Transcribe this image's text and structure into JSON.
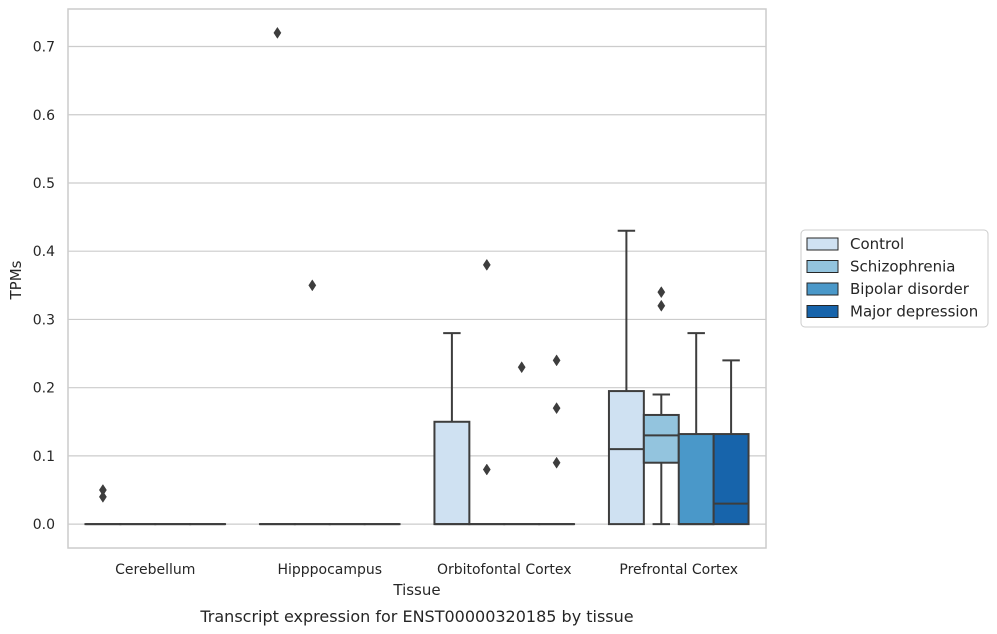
{
  "caption": "Transcript expression for ENST00000320185 by tissue",
  "chart_data": {
    "type": "box",
    "xlabel": "Tissue",
    "ylabel": "TPMs",
    "ylim": [
      -0.035,
      0.755
    ],
    "yticks": [
      "0.0",
      "0.1",
      "0.2",
      "0.3",
      "0.4",
      "0.5",
      "0.6",
      "0.7"
    ],
    "ytick_values": [
      0,
      0.1,
      0.2,
      0.3,
      0.4,
      0.5,
      0.6,
      0.7
    ],
    "grid": true,
    "legend_position": "right",
    "categories": [
      "Cerebellum",
      "Hipppocampus",
      "Orbitofontal Cortex",
      "Prefrontal Cortex"
    ],
    "series": [
      {
        "name": "Control",
        "color": "#cfe1f2",
        "boxes": [
          {
            "category": "Cerebellum",
            "whisker_low": 0,
            "q1": 0,
            "median": 0,
            "q3": 0,
            "whisker_high": 0,
            "outliers": [
              0.05,
              0.04
            ]
          },
          {
            "category": "Hipppocampus",
            "whisker_low": 0,
            "q1": 0,
            "median": 0,
            "q3": 0,
            "whisker_high": 0,
            "outliers": [
              0.72
            ]
          },
          {
            "category": "Orbitofontal Cortex",
            "whisker_low": 0,
            "q1": 0,
            "median": 0,
            "q3": 0.15,
            "whisker_high": 0.28,
            "outliers": []
          },
          {
            "category": "Prefrontal Cortex",
            "whisker_low": 0,
            "q1": 0,
            "median": 0.11,
            "q3": 0.195,
            "whisker_high": 0.43,
            "outliers": []
          }
        ]
      },
      {
        "name": "Schizophrenia",
        "color": "#93c4de",
        "boxes": [
          {
            "category": "Cerebellum",
            "whisker_low": 0,
            "q1": 0,
            "median": 0,
            "q3": 0,
            "whisker_high": 0,
            "outliers": []
          },
          {
            "category": "Hipppocampus",
            "whisker_low": 0,
            "q1": 0,
            "median": 0,
            "q3": 0,
            "whisker_high": 0,
            "outliers": [
              0.35
            ]
          },
          {
            "category": "Orbitofontal Cortex",
            "whisker_low": 0,
            "q1": 0,
            "median": 0,
            "q3": 0,
            "whisker_high": 0,
            "outliers": [
              0.08,
              0.38
            ]
          },
          {
            "category": "Prefrontal Cortex",
            "whisker_low": 0,
            "q1": 0.09,
            "median": 0.13,
            "q3": 0.16,
            "whisker_high": 0.19,
            "outliers": [
              0.34,
              0.32
            ]
          }
        ]
      },
      {
        "name": "Bipolar disorder",
        "color": "#4a98c9",
        "boxes": [
          {
            "category": "Cerebellum",
            "whisker_low": 0,
            "q1": 0,
            "median": 0,
            "q3": 0,
            "whisker_high": 0,
            "outliers": []
          },
          {
            "category": "Hipppocampus",
            "whisker_low": 0,
            "q1": 0,
            "median": 0,
            "q3": 0,
            "whisker_high": 0,
            "outliers": []
          },
          {
            "category": "Orbitofontal Cortex",
            "whisker_low": 0,
            "q1": 0,
            "median": 0,
            "q3": 0,
            "whisker_high": 0,
            "outliers": [
              0.23
            ]
          },
          {
            "category": "Prefrontal Cortex",
            "whisker_low": 0,
            "q1": 0,
            "median": 0,
            "q3": 0.132,
            "whisker_high": 0.28,
            "outliers": []
          }
        ]
      },
      {
        "name": "Major depression",
        "color": "#1764ab",
        "boxes": [
          {
            "category": "Cerebellum",
            "whisker_low": 0,
            "q1": 0,
            "median": 0,
            "q3": 0,
            "whisker_high": 0,
            "outliers": []
          },
          {
            "category": "Hipppocampus",
            "whisker_low": 0,
            "q1": 0,
            "median": 0,
            "q3": 0,
            "whisker_high": 0,
            "outliers": []
          },
          {
            "category": "Orbitofontal Cortex",
            "whisker_low": 0,
            "q1": 0,
            "median": 0,
            "q3": 0,
            "whisker_high": 0,
            "outliers": [
              0.24,
              0.17,
              0.09
            ]
          },
          {
            "category": "Prefrontal Cortex",
            "whisker_low": 0,
            "q1": 0,
            "median": 0.03,
            "q3": 0.132,
            "whisker_high": 0.24,
            "outliers": []
          }
        ]
      }
    ]
  }
}
